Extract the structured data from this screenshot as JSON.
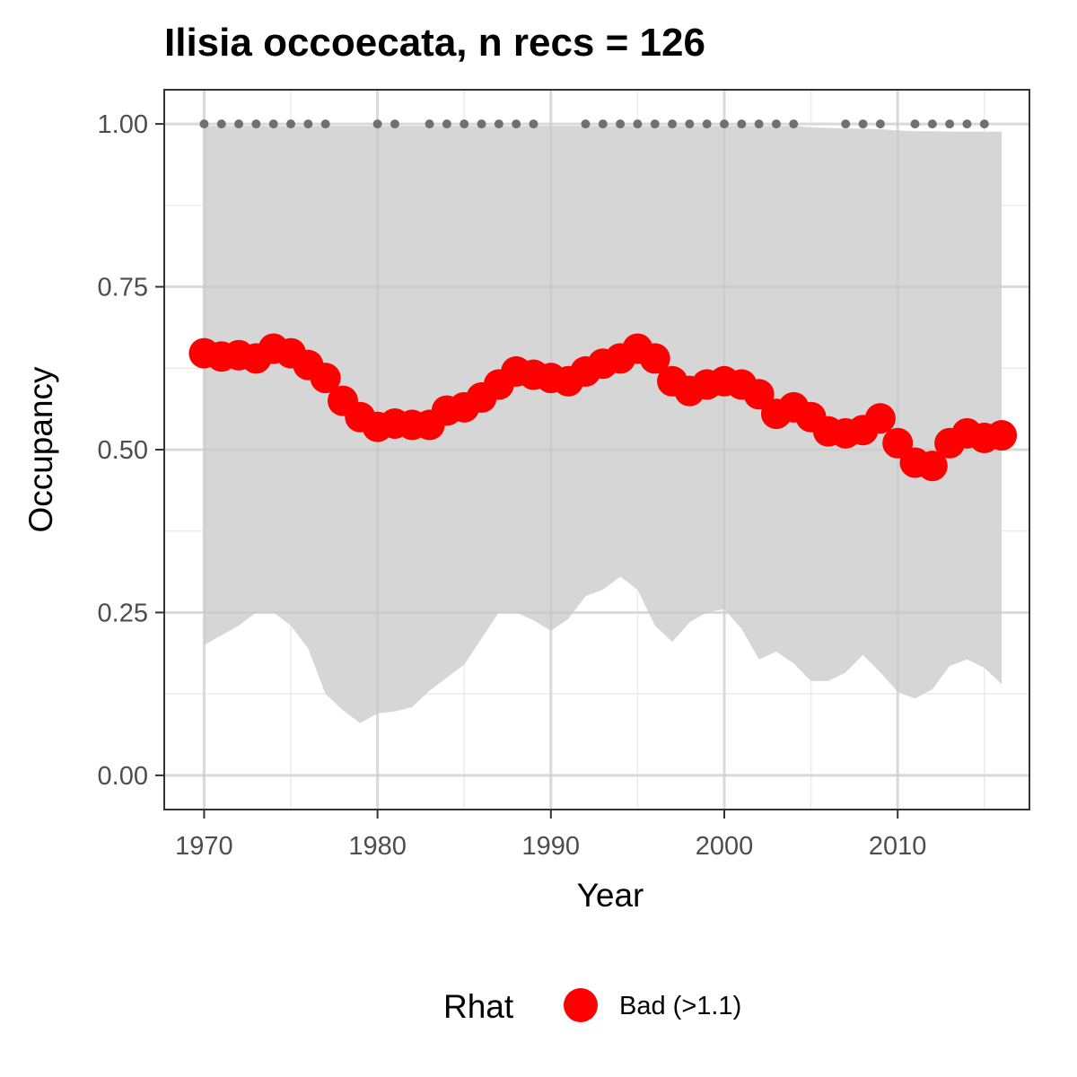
{
  "chart_data": {
    "type": "line",
    "title": "Ilisia occoecata, n recs = 126",
    "xlabel": "Year",
    "ylabel": "Occupancy",
    "xlim": [
      1967.7,
      2017.6
    ],
    "ylim": [
      -0.0525,
      1.0525
    ],
    "xticks": [
      1970,
      1980,
      1990,
      2000,
      2010
    ],
    "yticks": [
      0.0,
      0.25,
      0.5,
      0.75,
      1.0
    ],
    "ytick_labels": [
      "0.00",
      "0.25",
      "0.50",
      "0.75",
      "1.00"
    ],
    "grid": true,
    "x": [
      1970,
      1971,
      1972,
      1973,
      1974,
      1975,
      1976,
      1977,
      1978,
      1979,
      1980,
      1981,
      1982,
      1983,
      1984,
      1985,
      1986,
      1987,
      1988,
      1989,
      1990,
      1991,
      1992,
      1993,
      1994,
      1995,
      1996,
      1997,
      1998,
      1999,
      2000,
      2001,
      2002,
      2003,
      2004,
      2005,
      2006,
      2007,
      2008,
      2009,
      2010,
      2011,
      2012,
      2013,
      2014,
      2015,
      2016
    ],
    "series": [
      {
        "name": "Occupancy",
        "color": "#ff0000",
        "values": [
          0.648,
          0.643,
          0.645,
          0.64,
          0.655,
          0.648,
          0.63,
          0.61,
          0.575,
          0.55,
          0.535,
          0.54,
          0.538,
          0.538,
          0.56,
          0.565,
          0.58,
          0.6,
          0.62,
          0.615,
          0.61,
          0.605,
          0.62,
          0.632,
          0.64,
          0.655,
          0.64,
          0.605,
          0.59,
          0.6,
          0.605,
          0.6,
          0.585,
          0.555,
          0.565,
          0.55,
          0.528,
          0.525,
          0.53,
          0.548,
          0.51,
          0.48,
          0.475,
          0.51,
          0.525,
          0.518,
          0.522
        ],
        "lower": [
          0.2,
          0.215,
          0.23,
          0.25,
          0.25,
          0.23,
          0.195,
          0.125,
          0.1,
          0.08,
          0.095,
          0.098,
          0.105,
          0.13,
          0.15,
          0.17,
          0.21,
          0.25,
          0.25,
          0.238,
          0.222,
          0.24,
          0.275,
          0.285,
          0.305,
          0.285,
          0.23,
          0.205,
          0.235,
          0.25,
          0.255,
          0.225,
          0.178,
          0.19,
          0.172,
          0.145,
          0.145,
          0.158,
          0.185,
          0.158,
          0.128,
          0.118,
          0.132,
          0.168,
          0.178,
          0.165,
          0.14
        ],
        "upper": [
          0.997,
          0.997,
          0.997,
          0.997,
          0.997,
          0.997,
          0.997,
          0.997,
          0.997,
          0.997,
          0.997,
          0.997,
          0.997,
          0.997,
          0.997,
          0.997,
          0.997,
          0.997,
          0.997,
          0.997,
          0.997,
          0.997,
          0.997,
          0.997,
          0.997,
          0.997,
          0.997,
          0.997,
          0.997,
          0.997,
          0.997,
          0.997,
          0.997,
          0.997,
          0.997,
          0.995,
          0.994,
          0.993,
          0.993,
          0.992,
          0.99,
          0.989,
          0.989,
          0.988,
          0.988,
          0.988,
          0.988
        ]
      }
    ],
    "detection_years": [
      1970,
      1971,
      1972,
      1973,
      1974,
      1975,
      1976,
      1977,
      1980,
      1981,
      1983,
      1984,
      1985,
      1986,
      1987,
      1988,
      1989,
      1992,
      1993,
      1994,
      1995,
      1996,
      1997,
      1998,
      1999,
      2000,
      2001,
      2002,
      2003,
      2004,
      2007,
      2008,
      2009,
      2011,
      2012,
      2013,
      2014,
      2015
    ],
    "detection_value": 1.0,
    "detection_color": "#707070",
    "ribbon_color": "#d6d6d6",
    "legend": {
      "title": "Rhat",
      "position": "bottom",
      "entries": [
        {
          "label": "Bad (>1.1)",
          "color": "#ff0000"
        }
      ]
    }
  }
}
